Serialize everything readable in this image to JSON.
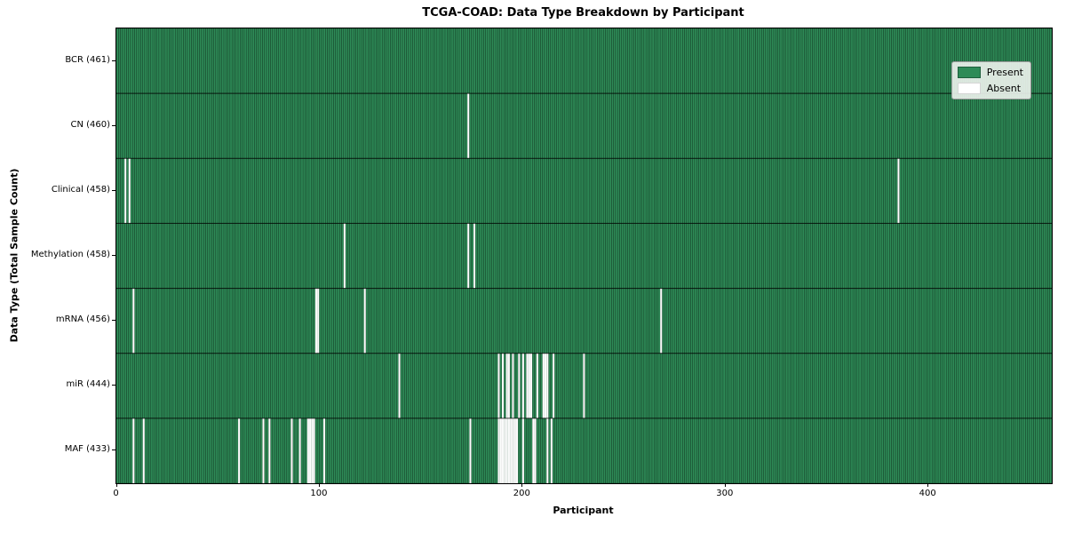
{
  "title": "TCGA-COAD: Data Type Breakdown by Participant",
  "axes": {
    "xlabel": "Participant",
    "ylabel": "Data Type (Total Sample Count)"
  },
  "legend": {
    "present": "Present",
    "absent": "Absent"
  },
  "colors": {
    "present": "#2e8b57",
    "absent": "#ffffff",
    "present_edge": "rgba(0,0,0,0.5)",
    "absent_edge": "rgba(0,0,0,0.13)",
    "row_divider": "rgba(0,0,0,0.7)"
  },
  "chart_data": {
    "type": "heatmap",
    "title": "TCGA-COAD: Data Type Breakdown by Participant",
    "xlabel": "Participant",
    "ylabel": "Data Type (Total Sample Count)",
    "legend_entries": [
      "Present",
      "Absent"
    ],
    "legend_position": "upper right",
    "grid": false,
    "n_participants": 461,
    "xlim": [
      0,
      461
    ],
    "x_ticks": [
      0,
      100,
      200,
      300,
      400
    ],
    "cell_values": {
      "present": 1,
      "absent": 0
    },
    "rows": [
      {
        "label": "BCR (461)",
        "name": "BCR",
        "total": 461,
        "absent": []
      },
      {
        "label": "CN (460)",
        "name": "CN",
        "total": 460,
        "absent": [
          173
        ]
      },
      {
        "label": "Clinical (458)",
        "name": "Clinical",
        "total": 458,
        "absent": [
          4,
          6,
          385
        ]
      },
      {
        "label": "Methylation (458)",
        "name": "Methylation",
        "total": 458,
        "absent": [
          112,
          173,
          176
        ]
      },
      {
        "label": "mRNA (456)",
        "name": "mRNA",
        "total": 456,
        "absent": [
          8,
          98,
          99,
          122,
          268
        ]
      },
      {
        "label": "miR (444)",
        "name": "miR",
        "total": 444,
        "absent": [
          139,
          188,
          190,
          192,
          193,
          195,
          198,
          200,
          202,
          203,
          204,
          207,
          210,
          211,
          212,
          215,
          230
        ]
      },
      {
        "label": "MAF (433)",
        "name": "MAF",
        "total": 433,
        "absent": [
          8,
          13,
          60,
          72,
          75,
          86,
          90,
          94,
          95,
          96,
          97,
          102,
          174,
          188,
          189,
          190,
          191,
          192,
          193,
          194,
          195,
          196,
          197,
          200,
          205,
          206,
          212,
          214
        ]
      }
    ]
  }
}
